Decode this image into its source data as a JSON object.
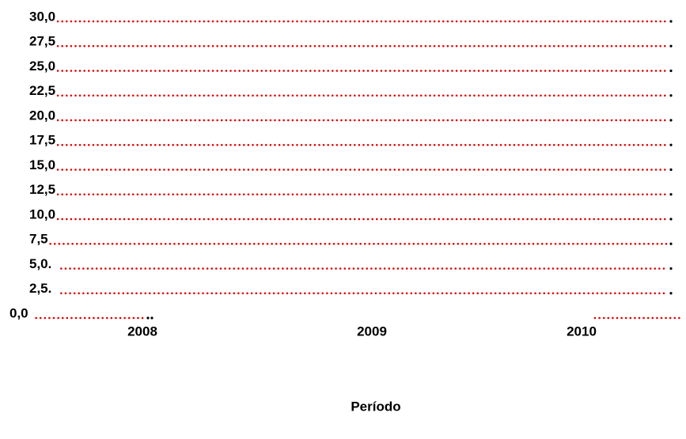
{
  "rows": [
    "30,0",
    "27,5",
    "25,0",
    "22,5",
    "20,0",
    "17,5",
    "15,0",
    "12,5",
    "10,0",
    "7,5",
    "5,0.",
    "2,5.",
    "0,0"
  ],
  "columns": [
    "2008",
    "2009",
    "2010"
  ],
  "axis_title": "Período"
}
